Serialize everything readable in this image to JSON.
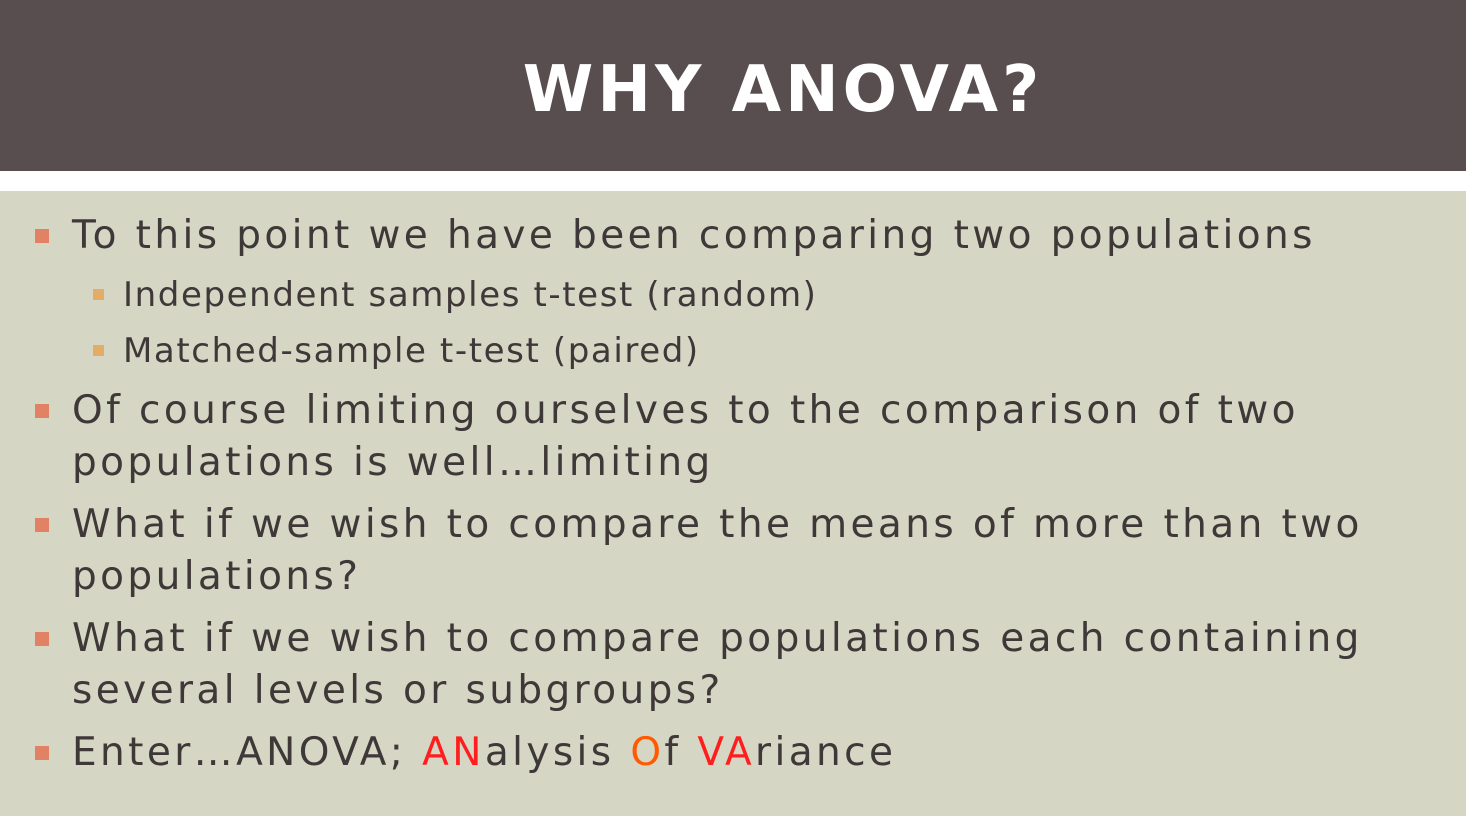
{
  "slide": {
    "title": "WHY ANOVA?"
  },
  "bullets": [
    {
      "line1": "To this point we have been comparing two populations"
    },
    {
      "sub1": "Independent samples t-test (random)",
      "sub2": "Matched-sample t-test (paired)"
    },
    {
      "line1": "Of course limiting ourselves to the comparison of two",
      "line2": "populations is well…limiting"
    },
    {
      "line1": "What if we wish to compare the means of more than two",
      "line2": "populations?"
    },
    {
      "line1": "What if we wish to compare populations each containing",
      "line2": "several levels or subgroups?"
    },
    {
      "prefix": "Enter…ANOVA; ",
      "an": "AN",
      "alysis": "alysis ",
      "o": "O",
      "f": "f ",
      "va": "VA",
      "riance": "riance"
    }
  ],
  "colors": {
    "title_bg": "#584e4f",
    "body_bg": "#d6d6c4",
    "text": "#3e3838",
    "bullet_marker": "#e28265",
    "sub_marker": "#e3ad68",
    "highlight_red": "#ff1e1e",
    "highlight_orange": "#ff5a00"
  }
}
